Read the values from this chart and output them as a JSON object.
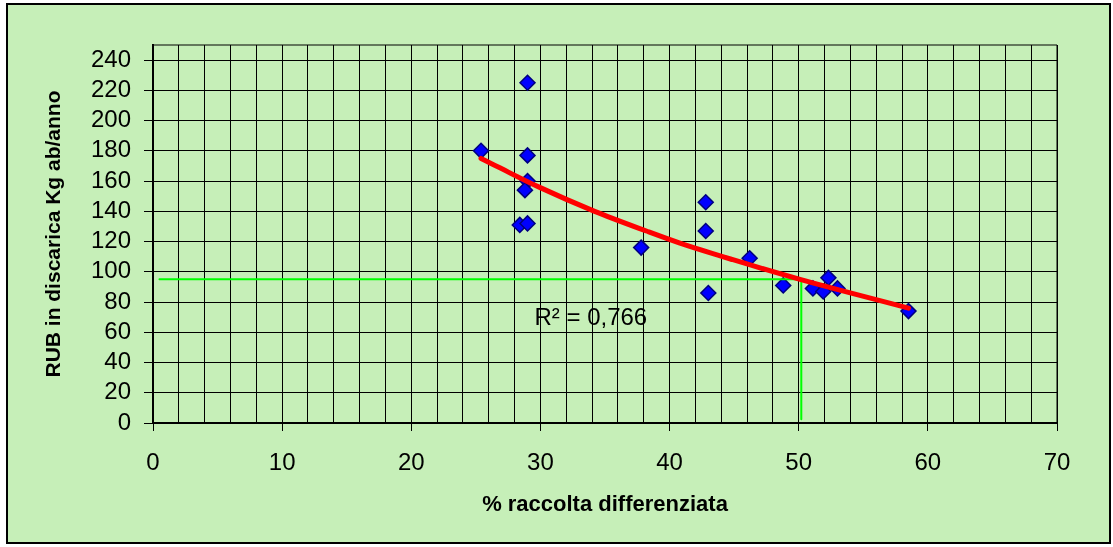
{
  "chart_data": {
    "type": "scatter",
    "xlabel": "% raccolta differenziata",
    "ylabel": "RUB in discarica Kg ab/anno",
    "xlim": [
      0,
      70
    ],
    "ylim": [
      0,
      250
    ],
    "xticks": [
      0,
      {
        "value": 2,
        "label": null
      },
      {
        "value": 4,
        "label": null
      },
      {
        "value": 6,
        "label": null
      },
      {
        "value": 8,
        "label": null
      },
      10,
      {
        "value": 12,
        "label": null
      },
      {
        "value": 14,
        "label": null
      },
      {
        "value": 16,
        "label": null
      },
      {
        "value": 18,
        "label": null
      },
      20,
      {
        "value": 22,
        "label": null
      },
      {
        "value": 24,
        "label": null
      },
      {
        "value": 26,
        "label": null
      },
      {
        "value": 28,
        "label": null
      },
      30,
      {
        "value": 32,
        "label": null
      },
      {
        "value": 34,
        "label": null
      },
      {
        "value": 36,
        "label": null
      },
      {
        "value": 38,
        "label": null
      },
      40,
      {
        "value": 42,
        "label": null
      },
      {
        "value": 44,
        "label": null
      },
      {
        "value": 46,
        "label": null
      },
      {
        "value": 48,
        "label": null
      },
      50,
      {
        "value": 52,
        "label": null
      },
      {
        "value": 54,
        "label": null
      },
      {
        "value": 56,
        "label": null
      },
      {
        "value": 58,
        "label": null
      },
      60,
      {
        "value": 62,
        "label": null
      },
      {
        "value": 64,
        "label": null
      },
      {
        "value": 66,
        "label": null
      },
      {
        "value": 68,
        "label": null
      },
      70
    ],
    "yticks": [
      0,
      20,
      40,
      60,
      80,
      100,
      120,
      140,
      160,
      180,
      200,
      220,
      240
    ],
    "grid": true,
    "marker": "diamond",
    "annotations": [
      "R² = 0,766"
    ],
    "series": [
      {
        "color": "#0000ff",
        "x": [
          25.4,
          29.0,
          29.0,
          29.0,
          28.8,
          28.4,
          29.0,
          37.8,
          42.8,
          42.8,
          43.0,
          46.2,
          48.8,
          51.1,
          51.9,
          52.3,
          53.0,
          58.5
        ],
        "values": [
          180,
          225,
          177,
          160,
          154,
          131,
          132,
          116,
          146,
          127,
          86,
          109,
          91,
          89,
          87,
          96,
          89,
          74
        ]
      },
      {
        "type": "line",
        "color": "#ff0000",
        "marker": "none",
        "x": [
          25.4,
          29.9,
          34.2,
          38.2,
          40.8,
          44.9,
          50.1,
          58.5
        ],
        "values": [
          175,
          156,
          140,
          127,
          119,
          108,
          95,
          76
        ]
      },
      {
        "type": "line",
        "color": "#00ff00",
        "marker": "none",
        "x": [
          0.5,
          50.2,
          50.2
        ],
        "values": [
          95,
          95,
          2.5
        ]
      }
    ]
  }
}
